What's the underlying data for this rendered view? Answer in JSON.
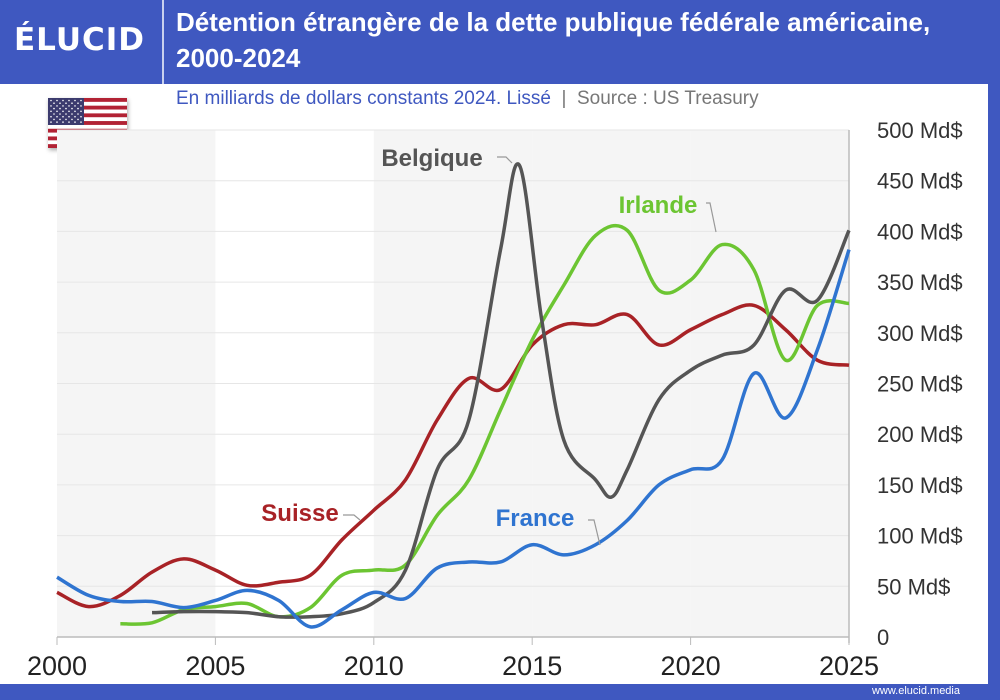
{
  "brand": {
    "logo": "ÉLUCID",
    "website": "www.elucid.media",
    "color": "#3f58c0"
  },
  "title": "Détention étrangère de la dette publique fédérale américaine, 2000-2024",
  "subtitle": "En milliards de dollars constants 2024. Lissé",
  "source": "Source : US Treasury",
  "flag": "usa-flag",
  "chart_data": {
    "type": "line",
    "title": "Détention étrangère de la dette publique fédérale américaine, 2000-2024",
    "xlim": [
      2000,
      2025
    ],
    "ylim": [
      0,
      500
    ],
    "x_ticks": [
      "2000",
      "2005",
      "2010",
      "2015",
      "2020",
      "2025"
    ],
    "y_ticks": [
      "0",
      "50 Md$",
      "100 Md$",
      "150 Md$",
      "200 Md$",
      "250 Md$",
      "300 Md$",
      "350 Md$",
      "400 Md$",
      "450 Md$",
      "500 Md$"
    ],
    "grid": true,
    "series": [
      {
        "name": "Suisse",
        "color": "#a82226",
        "x": [
          2000,
          2001,
          2002,
          2003,
          2004,
          2005,
          2006,
          2007,
          2008,
          2009,
          2010,
          2011,
          2012,
          2013,
          2014,
          2015,
          2016,
          2017,
          2018,
          2019,
          2020,
          2021,
          2022,
          2023,
          2024,
          2025
        ],
        "y": [
          44,
          30,
          41,
          64,
          77,
          66,
          51,
          54,
          61,
          96,
          125,
          155,
          214,
          255,
          244,
          288,
          308,
          308,
          318,
          288,
          303,
          318,
          327,
          303,
          273,
          268
        ]
      },
      {
        "name": "Irlande",
        "color": "#6cc532",
        "x": [
          2002,
          2003,
          2004,
          2005,
          2006,
          2007,
          2008,
          2009,
          2010,
          2011,
          2012,
          2013,
          2014,
          2015,
          2016,
          2017,
          2018,
          2019,
          2020,
          2021,
          2022,
          2023,
          2024,
          2025
        ],
        "y": [
          13,
          14,
          27,
          30,
          33,
          20,
          29,
          61,
          66,
          71,
          120,
          155,
          224,
          293,
          347,
          396,
          401,
          342,
          352,
          387,
          362,
          273,
          327,
          329
        ]
      },
      {
        "name": "Belgique",
        "color": "#555555",
        "x": [
          2003,
          2004,
          2005,
          2006,
          2007,
          2008,
          2009,
          2010,
          2011,
          2012,
          2013,
          2014,
          2014.6,
          2015.3,
          2016,
          2017,
          2017.5,
          2018,
          2019,
          2020,
          2021,
          2022,
          2023,
          2024,
          2025
        ],
        "y": [
          24,
          25,
          25,
          24,
          20,
          20,
          23,
          34,
          66,
          165,
          214,
          382,
          465,
          313,
          194,
          155,
          138,
          165,
          234,
          263,
          278,
          288,
          342,
          332,
          401
        ]
      },
      {
        "name": "France",
        "color": "#2f74d0",
        "x": [
          2000,
          2001,
          2002,
          2003,
          2004,
          2005,
          2006,
          2007,
          2008,
          2009,
          2010,
          2011,
          2012,
          2013,
          2014,
          2015,
          2016,
          2017,
          2018,
          2019,
          2020,
          2021,
          2022,
          2023,
          2024,
          2025
        ],
        "y": [
          59,
          41,
          35,
          35,
          29,
          36,
          46,
          36,
          10,
          27,
          44,
          38,
          68,
          74,
          74,
          91,
          81,
          91,
          115,
          150,
          165,
          175,
          260,
          216,
          283,
          382
        ]
      }
    ]
  }
}
